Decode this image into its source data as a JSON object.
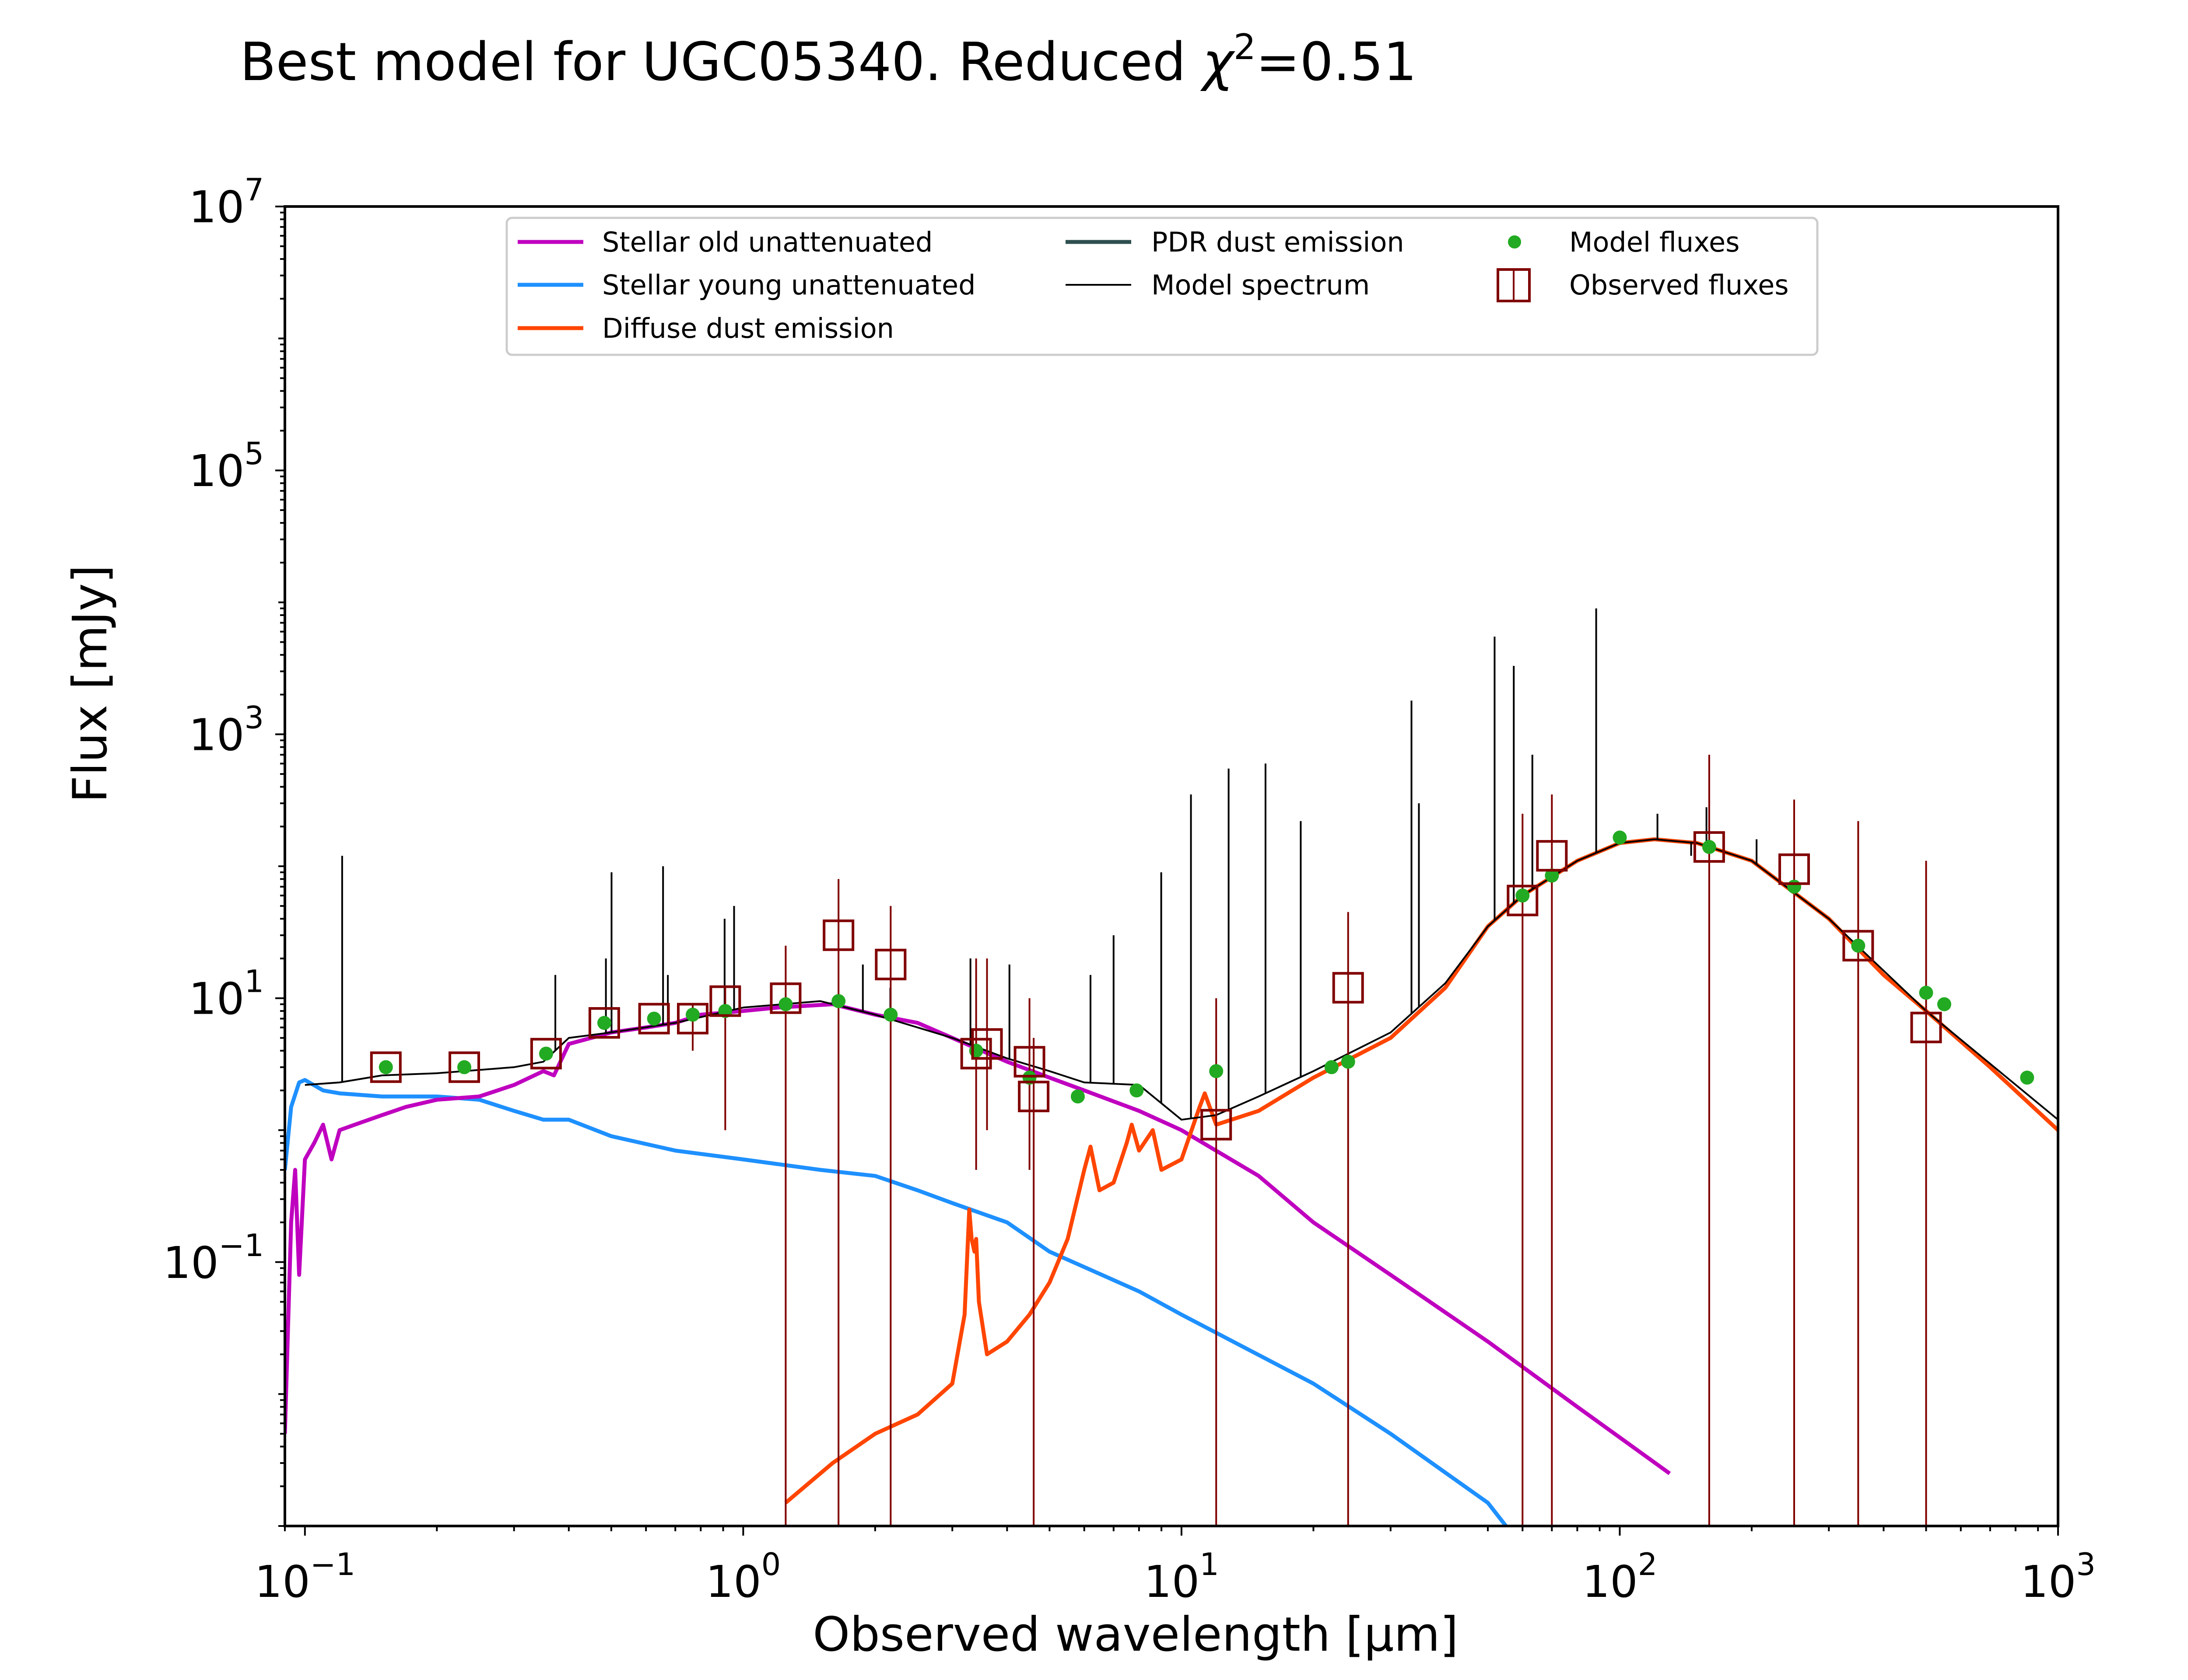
{
  "chart_data": {
    "type": "line",
    "title": "Best model for UGC05340. Reduced χ²=0.51",
    "title_main": "Best model for UGC05340. Reduced ",
    "title_chi": "χ",
    "title_sup": "2",
    "title_tail": "=0.51",
    "xlabel": "Observed wavelength [μm]",
    "ylabel": "Flux [mJy]",
    "x_scale": "log",
    "y_scale": "log",
    "xlim": [
      0.09,
      1000
    ],
    "ylim": [
      0.001,
      10000000
    ],
    "x_ticks": [
      {
        "value": 0.1,
        "base": "10",
        "exp": "−1"
      },
      {
        "value": 1,
        "base": "10",
        "exp": "0"
      },
      {
        "value": 10,
        "base": "10",
        "exp": "1"
      },
      {
        "value": 100,
        "base": "10",
        "exp": "2"
      },
      {
        "value": 1000,
        "base": "10",
        "exp": "3"
      }
    ],
    "y_ticks": [
      {
        "value": 0.1,
        "base": "10",
        "exp": "−1"
      },
      {
        "value": 10,
        "base": "10",
        "exp": "1"
      },
      {
        "value": 1000,
        "base": "10",
        "exp": "3"
      },
      {
        "value": 100000,
        "base": "10",
        "exp": "5"
      },
      {
        "value": 10000000,
        "base": "10",
        "exp": "7"
      }
    ],
    "grid": false,
    "legend_position": "top-center",
    "colors": {
      "stellar_old": "#bf00bf",
      "stellar_young": "#1e90ff",
      "diffuse_dust": "#ff4500",
      "pdr_dust": "#2f4f4f",
      "model_spectrum": "#000000",
      "model_fluxes": "#22aa22",
      "observed_fluxes": "#800000"
    },
    "legend": {
      "stellar_old": "Stellar old unattenuated",
      "stellar_young": "Stellar young unattenuated",
      "diffuse_dust": "Diffuse dust emission",
      "pdr_dust": "PDR dust emission",
      "model_spectrum": "Model spectrum",
      "model_fluxes": "Model fluxes",
      "observed_fluxes": "Observed fluxes"
    },
    "series": {
      "stellar_old": [
        [
          0.09,
          0.005
        ],
        [
          0.093,
          0.2
        ],
        [
          0.095,
          0.5
        ],
        [
          0.097,
          0.08
        ],
        [
          0.1,
          0.6
        ],
        [
          0.105,
          0.8
        ],
        [
          0.11,
          1.1
        ],
        [
          0.115,
          0.6
        ],
        [
          0.12,
          1.0
        ],
        [
          0.13,
          1.1
        ],
        [
          0.15,
          1.3
        ],
        [
          0.17,
          1.5
        ],
        [
          0.2,
          1.7
        ],
        [
          0.25,
          1.8
        ],
        [
          0.3,
          2.2
        ],
        [
          0.35,
          2.8
        ],
        [
          0.37,
          2.6
        ],
        [
          0.4,
          4.5
        ],
        [
          0.45,
          5.0
        ],
        [
          0.5,
          5.5
        ],
        [
          0.6,
          6.0
        ],
        [
          0.7,
          6.5
        ],
        [
          0.8,
          7.5
        ],
        [
          1.0,
          8.0
        ],
        [
          1.2,
          8.5
        ],
        [
          1.6,
          9.0
        ],
        [
          2.0,
          7.5
        ],
        [
          2.5,
          6.5
        ],
        [
          3.0,
          5.0
        ],
        [
          3.5,
          4.0
        ],
        [
          4.0,
          3.3
        ],
        [
          5.0,
          2.5
        ],
        [
          6.0,
          2.0
        ],
        [
          8.0,
          1.4
        ],
        [
          10.0,
          1.0
        ],
        [
          15.0,
          0.45
        ],
        [
          20.0,
          0.2
        ],
        [
          30.0,
          0.08
        ],
        [
          50.0,
          0.025
        ],
        [
          80.0,
          0.008
        ],
        [
          130.0,
          0.0025
        ]
      ],
      "stellar_young": [
        [
          0.09,
          0.5
        ],
        [
          0.093,
          1.5
        ],
        [
          0.097,
          2.3
        ],
        [
          0.1,
          2.4
        ],
        [
          0.11,
          2.0
        ],
        [
          0.12,
          1.9
        ],
        [
          0.15,
          1.8
        ],
        [
          0.2,
          1.8
        ],
        [
          0.25,
          1.7
        ],
        [
          0.3,
          1.4
        ],
        [
          0.35,
          1.2
        ],
        [
          0.4,
          1.2
        ],
        [
          0.5,
          0.9
        ],
        [
          0.7,
          0.7
        ],
        [
          1.0,
          0.6
        ],
        [
          1.5,
          0.5
        ],
        [
          2.0,
          0.45
        ],
        [
          2.5,
          0.35
        ],
        [
          3.0,
          0.28
        ],
        [
          4.0,
          0.2
        ],
        [
          5.0,
          0.12
        ],
        [
          8.0,
          0.06
        ],
        [
          10.0,
          0.04
        ],
        [
          20.0,
          0.012
        ],
        [
          30.0,
          0.005
        ],
        [
          50.0,
          0.0015
        ],
        [
          55.0,
          0.001
        ]
      ],
      "diffuse_dust": [
        [
          1.25,
          0.0015
        ],
        [
          1.6,
          0.003
        ],
        [
          2.0,
          0.005
        ],
        [
          2.5,
          0.007
        ],
        [
          3.0,
          0.012
        ],
        [
          3.2,
          0.04
        ],
        [
          3.28,
          0.25
        ],
        [
          3.32,
          0.15
        ],
        [
          3.37,
          0.12
        ],
        [
          3.4,
          0.15
        ],
        [
          3.45,
          0.05
        ],
        [
          3.6,
          0.02
        ],
        [
          4.0,
          0.025
        ],
        [
          4.5,
          0.04
        ],
        [
          5.0,
          0.07
        ],
        [
          5.5,
          0.15
        ],
        [
          6.0,
          0.5
        ],
        [
          6.2,
          0.75
        ],
        [
          6.5,
          0.35
        ],
        [
          7.0,
          0.4
        ],
        [
          7.5,
          0.8
        ],
        [
          7.7,
          1.1
        ],
        [
          8.0,
          0.7
        ],
        [
          8.6,
          1.0
        ],
        [
          9.0,
          0.5
        ],
        [
          10.0,
          0.6
        ],
        [
          11.0,
          1.5
        ],
        [
          11.3,
          1.9
        ],
        [
          12.0,
          1.1
        ],
        [
          15.0,
          1.4
        ],
        [
          20.0,
          2.5
        ],
        [
          30.0,
          5.0
        ],
        [
          40.0,
          12.0
        ],
        [
          50.0,
          35.0
        ],
        [
          60.0,
          60.0
        ],
        [
          80.0,
          110.0
        ],
        [
          100.0,
          150.0
        ],
        [
          120.0,
          160.0
        ],
        [
          150.0,
          150.0
        ],
        [
          200.0,
          110.0
        ],
        [
          300.0,
          40.0
        ],
        [
          400.0,
          15.0
        ],
        [
          500.0,
          8.0
        ],
        [
          700.0,
          3.0
        ],
        [
          1000.0,
          1.0
        ]
      ],
      "model_spectrum": [
        [
          0.1,
          2.2
        ],
        [
          0.12,
          2.3
        ],
        [
          0.15,
          2.6
        ],
        [
          0.2,
          2.7
        ],
        [
          0.3,
          3.0
        ],
        [
          0.35,
          3.3
        ],
        [
          0.4,
          5.0
        ],
        [
          0.5,
          5.5
        ],
        [
          0.7,
          6.5
        ],
        [
          1.0,
          8.5
        ],
        [
          1.5,
          9.5
        ],
        [
          2.0,
          7.5
        ],
        [
          3.0,
          5.0
        ],
        [
          4.0,
          3.5
        ],
        [
          5.0,
          2.8
        ],
        [
          6.0,
          2.3
        ],
        [
          8.0,
          2.2
        ],
        [
          10.0,
          1.2
        ],
        [
          12.0,
          1.3
        ],
        [
          15.0,
          1.8
        ],
        [
          20.0,
          2.8
        ],
        [
          30.0,
          5.5
        ],
        [
          40.0,
          13.0
        ],
        [
          50.0,
          35.0
        ],
        [
          60.0,
          60.0
        ],
        [
          80.0,
          110.0
        ],
        [
          100.0,
          150.0
        ],
        [
          120.0,
          160.0
        ],
        [
          150.0,
          150.0
        ],
        [
          200.0,
          110.0
        ],
        [
          300.0,
          40.0
        ],
        [
          500.0,
          8.0
        ],
        [
          1000.0,
          1.2
        ]
      ],
      "spectrum_lines": [
        [
          0.1216,
          120
        ],
        [
          0.3727,
          15
        ],
        [
          0.4861,
          20
        ],
        [
          0.5007,
          90
        ],
        [
          0.6563,
          100
        ],
        [
          0.6731,
          15
        ],
        [
          0.9069,
          40
        ],
        [
          0.9532,
          50
        ],
        [
          1.875,
          18
        ],
        [
          2.166,
          12
        ],
        [
          3.3,
          20
        ],
        [
          4.05,
          18
        ],
        [
          6.2,
          15
        ],
        [
          7.0,
          30
        ],
        [
          8.99,
          90
        ],
        [
          10.51,
          350
        ],
        [
          12.81,
          550
        ],
        [
          15.55,
          600
        ],
        [
          18.71,
          220
        ],
        [
          33.48,
          1800
        ],
        [
          34.81,
          300
        ],
        [
          51.81,
          5500
        ],
        [
          57.3,
          3300
        ],
        [
          63.18,
          700
        ],
        [
          88.35,
          9000
        ],
        [
          121.9,
          250
        ],
        [
          145.5,
          120
        ],
        [
          157.7,
          280
        ],
        [
          205.2,
          160
        ]
      ],
      "model_fluxes": [
        [
          0.153,
          3.0
        ],
        [
          0.231,
          3.0
        ],
        [
          0.355,
          3.8
        ],
        [
          0.482,
          6.5
        ],
        [
          0.626,
          7.0
        ],
        [
          0.767,
          7.5
        ],
        [
          0.91,
          8.0
        ],
        [
          1.25,
          9.0
        ],
        [
          1.65,
          9.5
        ],
        [
          2.17,
          7.5
        ],
        [
          3.4,
          4.0
        ],
        [
          4.5,
          2.5
        ],
        [
          5.8,
          1.8
        ],
        [
          7.9,
          2.0
        ],
        [
          12.0,
          2.8
        ],
        [
          22.0,
          3.0
        ],
        [
          24.0,
          3.3
        ],
        [
          60.0,
          60.0
        ],
        [
          70.0,
          85.0
        ],
        [
          100.0,
          165.0
        ],
        [
          160.0,
          140.0
        ],
        [
          250.0,
          70.0
        ],
        [
          350.0,
          25.0
        ],
        [
          500.0,
          11.0
        ],
        [
          550.0,
          9.0
        ],
        [
          850.0,
          2.5
        ]
      ],
      "observed_fluxes": [
        {
          "x": 0.153,
          "y": 3.0,
          "lo": null,
          "hi": null
        },
        {
          "x": 0.231,
          "y": 3.0,
          "lo": null,
          "hi": null
        },
        {
          "x": 0.355,
          "y": 3.8,
          "lo": null,
          "hi": null
        },
        {
          "x": 0.482,
          "y": 6.5,
          "lo": null,
          "hi": null
        },
        {
          "x": 0.626,
          "y": 7.0,
          "lo": null,
          "hi": null
        },
        {
          "x": 0.767,
          "y": 7.0,
          "lo": 4.0,
          "hi": null
        },
        {
          "x": 0.91,
          "y": 9.5,
          "lo": 1.0,
          "hi": null
        },
        {
          "x": 1.25,
          "y": 10.0,
          "lo": 0.001,
          "hi": 25.0
        },
        {
          "x": 1.65,
          "y": 30.0,
          "lo": 0.001,
          "hi": 80.0
        },
        {
          "x": 2.17,
          "y": 18.0,
          "lo": 0.001,
          "hi": 50.0
        },
        {
          "x": 3.4,
          "y": 3.8,
          "lo": 0.5,
          "hi": 20.0
        },
        {
          "x": 3.6,
          "y": 4.5,
          "lo": 1.0,
          "hi": 20.0
        },
        {
          "x": 4.5,
          "y": 3.3,
          "lo": 0.5,
          "hi": 10.0
        },
        {
          "x": 4.6,
          "y": 1.8,
          "lo": 0.001,
          "hi": 5.0
        },
        {
          "x": 12.0,
          "y": 1.1,
          "lo": 0.001,
          "hi": 10.0
        },
        {
          "x": 24.0,
          "y": 12.0,
          "lo": 0.001,
          "hi": 45.0
        },
        {
          "x": 60.0,
          "y": 55.0,
          "lo": 0.001,
          "hi": 250.0
        },
        {
          "x": 70.0,
          "y": 120.0,
          "lo": 0.001,
          "hi": 350.0
        },
        {
          "x": 160.0,
          "y": 140.0,
          "lo": 0.001,
          "hi": 700.0
        },
        {
          "x": 250.0,
          "y": 95.0,
          "lo": 0.001,
          "hi": 320.0
        },
        {
          "x": 350.0,
          "y": 25.0,
          "lo": 0.001,
          "hi": 220.0
        },
        {
          "x": 500.0,
          "y": 6.0,
          "lo": 0.001,
          "hi": 110.0
        }
      ]
    }
  }
}
